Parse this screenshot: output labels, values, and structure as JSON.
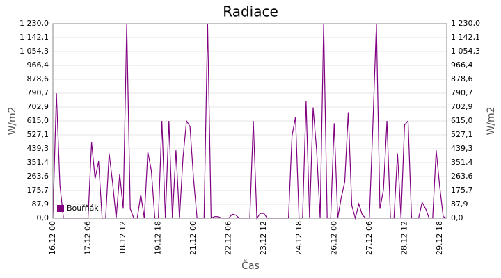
{
  "chart_data": {
    "type": "line",
    "title": "Radiace",
    "x_label": "Čas",
    "y_label": "W/m2",
    "categories": [
      "16.12 00",
      null,
      null,
      null,
      null,
      null,
      null,
      null,
      null,
      null,
      "17.12 06",
      null,
      null,
      null,
      null,
      null,
      null,
      null,
      null,
      null,
      "18.12 12",
      null,
      null,
      null,
      null,
      null,
      null,
      null,
      null,
      null,
      "19.12 18",
      null,
      null,
      null,
      null,
      null,
      null,
      null,
      null,
      null,
      "21.12 00",
      null,
      null,
      null,
      null,
      null,
      null,
      null,
      null,
      null,
      "22.12 06",
      null,
      null,
      null,
      null,
      null,
      null,
      null,
      null,
      null,
      "23.12 12",
      null,
      null,
      null,
      null,
      null,
      null,
      null,
      null,
      null,
      "24.12 18",
      null,
      null,
      null,
      null,
      null,
      null,
      null,
      null,
      null,
      "26.12 00",
      null,
      null,
      null,
      null,
      null,
      null,
      null,
      null,
      null,
      "27.12 06",
      null,
      null,
      null,
      null,
      null,
      null,
      null,
      null,
      null,
      "28.12 12",
      null,
      null,
      null,
      null,
      null,
      null,
      null,
      null,
      null,
      "29.12 18",
      null,
      null
    ],
    "series": [
      {
        "name": "Bouřňák",
        "color": "#800080",
        "values": [
          0,
          790,
          210,
          0,
          0,
          0,
          0,
          0,
          0,
          0,
          0,
          480,
          250,
          360,
          0,
          0,
          410,
          220,
          0,
          280,
          60,
          1230,
          60,
          0,
          0,
          150,
          0,
          420,
          300,
          0,
          0,
          615,
          0,
          615,
          0,
          430,
          0,
          380,
          615,
          580,
          250,
          0,
          0,
          0,
          1230,
          0,
          10,
          10,
          0,
          0,
          0,
          25,
          20,
          0,
          0,
          0,
          0,
          615,
          0,
          30,
          30,
          0,
          0,
          0,
          0,
          0,
          0,
          0,
          520,
          640,
          0,
          0,
          740,
          0,
          700,
          430,
          0,
          1230,
          0,
          0,
          600,
          0,
          130,
          230,
          670,
          80,
          0,
          90,
          20,
          0,
          0,
          590,
          1230,
          60,
          180,
          615,
          0,
          0,
          410,
          0,
          590,
          615,
          0,
          0,
          0,
          100,
          60,
          0,
          0,
          430,
          200,
          10,
          0
        ]
      }
    ],
    "ylim": [
      0,
      1230
    ],
    "yticks": [
      {
        "value": 0,
        "label": "0,0"
      },
      {
        "value": 87.9,
        "label": "87,9"
      },
      {
        "value": 175.7,
        "label": "175,7"
      },
      {
        "value": 263.6,
        "label": "263,6"
      },
      {
        "value": 351.4,
        "label": "351,4"
      },
      {
        "value": 439.3,
        "label": "439,3"
      },
      {
        "value": 527.1,
        "label": "527,1"
      },
      {
        "value": 615.0,
        "label": "615,0"
      },
      {
        "value": 702.9,
        "label": "702,9"
      },
      {
        "value": 790.7,
        "label": "790,7"
      },
      {
        "value": 878.6,
        "label": "878,6"
      },
      {
        "value": 966.4,
        "label": "966,4"
      },
      {
        "value": 1054.3,
        "label": "1 054,3"
      },
      {
        "value": 1142.1,
        "label": "1 142,1"
      },
      {
        "value": 1230.0,
        "label": "1 230,0"
      }
    ],
    "grid": true,
    "legend": "lower left"
  }
}
